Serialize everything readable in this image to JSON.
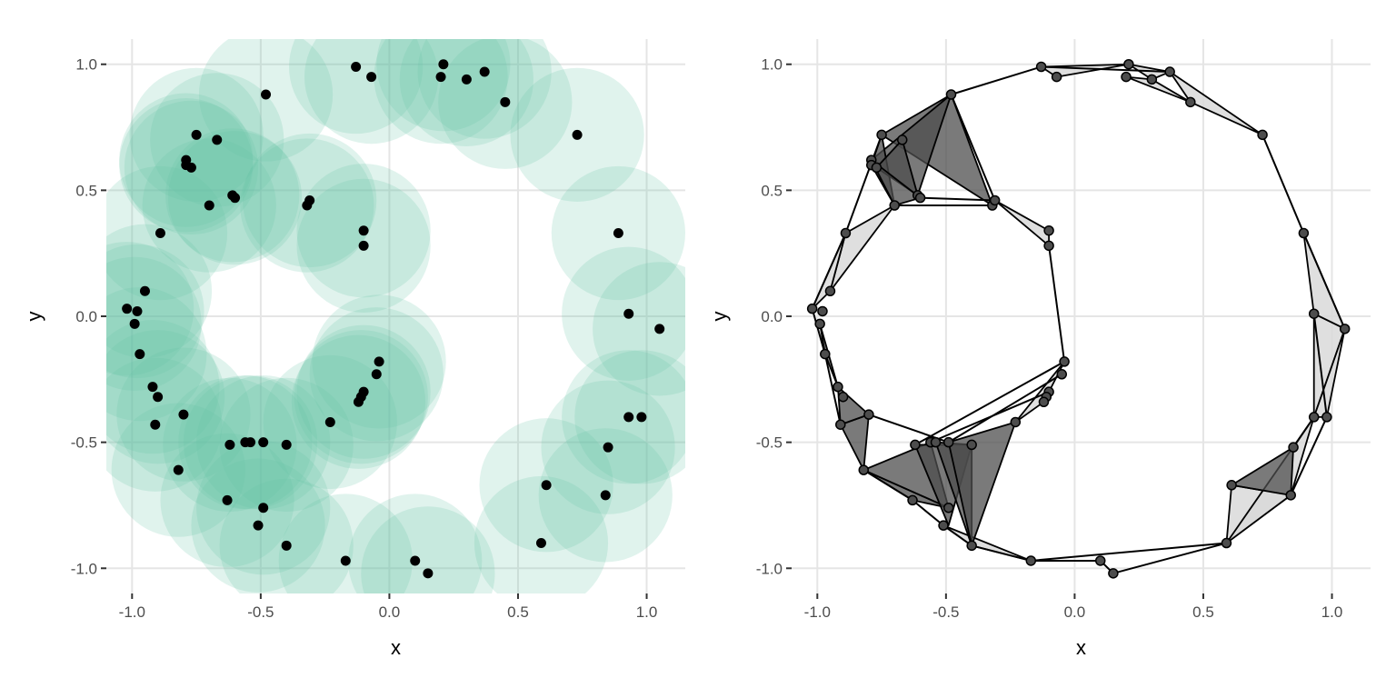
{
  "chart_data": [
    {
      "type": "scatter",
      "panel": "left",
      "xlabel": "x",
      "ylabel": "y",
      "xlim": [
        -1.1,
        1.15
      ],
      "ylim": [
        -1.1,
        1.1
      ],
      "xticks": [
        -1.0,
        -0.5,
        0.0,
        0.5,
        1.0
      ],
      "yticks": [
        -1.0,
        -0.5,
        0.0,
        0.5,
        1.0
      ],
      "xtick_labels": [
        "-1.0",
        "-0.5",
        "0.0",
        "0.5",
        "1.0"
      ],
      "ytick_labels": [
        "-1.0",
        "-0.5",
        "0.0",
        "0.5",
        "1.0"
      ],
      "grid": true,
      "disc_radius": 0.26,
      "disc_color": "#66c2a5",
      "disc_opacity": 0.2,
      "point_color": "#000000",
      "points": [
        [
          -0.13,
          0.99
        ],
        [
          -0.07,
          0.95
        ],
        [
          0.21,
          1.0
        ],
        [
          0.2,
          0.95
        ],
        [
          0.3,
          0.94
        ],
        [
          0.37,
          0.97
        ],
        [
          0.45,
          0.85
        ],
        [
          -0.48,
          0.88
        ],
        [
          0.73,
          0.72
        ],
        [
          -0.75,
          0.72
        ],
        [
          -0.67,
          0.7
        ],
        [
          -0.79,
          0.62
        ],
        [
          -0.79,
          0.6
        ],
        [
          -0.77,
          0.59
        ],
        [
          -0.61,
          0.48
        ],
        [
          -0.6,
          0.47
        ],
        [
          -0.7,
          0.44
        ],
        [
          -0.32,
          0.44
        ],
        [
          -0.31,
          0.46
        ],
        [
          -0.89,
          0.33
        ],
        [
          -0.1,
          0.34
        ],
        [
          -0.1,
          0.28
        ],
        [
          0.89,
          0.33
        ],
        [
          -0.95,
          0.1
        ],
        [
          -1.02,
          0.03
        ],
        [
          -0.98,
          0.02
        ],
        [
          -0.99,
          -0.03
        ],
        [
          0.93,
          0.01
        ],
        [
          1.05,
          -0.05
        ],
        [
          -0.97,
          -0.15
        ],
        [
          -0.04,
          -0.18
        ],
        [
          -0.05,
          -0.23
        ],
        [
          -0.92,
          -0.28
        ],
        [
          -0.9,
          -0.32
        ],
        [
          -0.1,
          -0.3
        ],
        [
          -0.11,
          -0.32
        ],
        [
          -0.12,
          -0.34
        ],
        [
          -0.8,
          -0.39
        ],
        [
          0.93,
          -0.4
        ],
        [
          0.98,
          -0.4
        ],
        [
          -0.91,
          -0.43
        ],
        [
          -0.23,
          -0.42
        ],
        [
          -0.56,
          -0.5
        ],
        [
          -0.54,
          -0.5
        ],
        [
          -0.62,
          -0.51
        ],
        [
          -0.49,
          -0.5
        ],
        [
          -0.4,
          -0.51
        ],
        [
          0.85,
          -0.52
        ],
        [
          -0.82,
          -0.61
        ],
        [
          0.61,
          -0.67
        ],
        [
          0.84,
          -0.71
        ],
        [
          -0.63,
          -0.73
        ],
        [
          -0.49,
          -0.76
        ],
        [
          -0.51,
          -0.83
        ],
        [
          -0.4,
          -0.91
        ],
        [
          0.59,
          -0.9
        ],
        [
          -0.17,
          -0.97
        ],
        [
          0.1,
          -0.97
        ],
        [
          0.15,
          -1.02
        ]
      ]
    },
    {
      "type": "network",
      "panel": "right",
      "xlabel": "x",
      "ylabel": "y",
      "xlim": [
        -1.1,
        1.15
      ],
      "ylim": [
        -1.1,
        1.1
      ],
      "xticks": [
        -1.0,
        -0.5,
        0.0,
        0.5,
        1.0
      ],
      "yticks": [
        -1.0,
        -0.5,
        0.0,
        0.5,
        1.0
      ],
      "xtick_labels": [
        "-1.0",
        "-0.5",
        "0.0",
        "0.5",
        "1.0"
      ],
      "ytick_labels": [
        "-1.0",
        "-0.5",
        "0.0",
        "0.5",
        "1.0"
      ],
      "grid": true,
      "node_color": "#4d4d4d",
      "edge_color": "#000000",
      "light_fill": "#d9d9d9",
      "dark_fill": "#4d4d4d",
      "light_triangles": [
        [
          [
            -0.13,
            0.99
          ],
          [
            0.21,
            1.0
          ],
          [
            -0.07,
            0.95
          ]
        ],
        [
          [
            0.21,
            1.0
          ],
          [
            0.37,
            0.97
          ],
          [
            0.3,
            0.94
          ]
        ],
        [
          [
            0.37,
            0.97
          ],
          [
            0.45,
            0.85
          ],
          [
            0.73,
            0.72
          ]
        ],
        [
          [
            0.2,
            0.95
          ],
          [
            0.3,
            0.94
          ],
          [
            0.45,
            0.85
          ]
        ],
        [
          [
            -0.89,
            0.33
          ],
          [
            -0.95,
            0.1
          ],
          [
            -0.7,
            0.44
          ]
        ],
        [
          [
            -0.95,
            0.1
          ],
          [
            -1.02,
            0.03
          ],
          [
            -0.89,
            0.33
          ]
        ],
        [
          [
            0.89,
            0.33
          ],
          [
            0.93,
            0.01
          ],
          [
            1.05,
            -0.05
          ]
        ],
        [
          [
            1.05,
            -0.05
          ],
          [
            0.93,
            0.01
          ],
          [
            0.93,
            -0.4
          ]
        ],
        [
          [
            0.93,
            -0.4
          ],
          [
            1.05,
            -0.05
          ],
          [
            0.98,
            -0.4
          ]
        ],
        [
          [
            -0.1,
            0.34
          ],
          [
            -0.1,
            0.28
          ],
          [
            -0.31,
            0.46
          ]
        ],
        [
          [
            0.59,
            -0.9
          ],
          [
            0.61,
            -0.67
          ],
          [
            0.84,
            -0.71
          ]
        ],
        [
          [
            0.84,
            -0.71
          ],
          [
            0.93,
            -0.4
          ],
          [
            0.59,
            -0.9
          ]
        ],
        [
          [
            -0.17,
            -0.97
          ],
          [
            -0.4,
            -0.91
          ],
          [
            -0.51,
            -0.83
          ]
        ],
        [
          [
            -0.23,
            -0.42
          ],
          [
            -0.04,
            -0.18
          ],
          [
            -0.12,
            -0.34
          ]
        ]
      ],
      "dark_triangles": [
        [
          [
            -0.48,
            0.88
          ],
          [
            -0.75,
            0.72
          ],
          [
            -0.32,
            0.44
          ]
        ],
        [
          [
            -0.48,
            0.88
          ],
          [
            -0.79,
            0.62
          ],
          [
            -0.61,
            0.48
          ]
        ],
        [
          [
            -0.75,
            0.72
          ],
          [
            -0.79,
            0.6
          ],
          [
            -0.7,
            0.44
          ]
        ],
        [
          [
            -0.67,
            0.7
          ],
          [
            -0.77,
            0.59
          ],
          [
            -0.61,
            0.48
          ]
        ],
        [
          [
            -0.79,
            0.62
          ],
          [
            -0.7,
            0.44
          ],
          [
            -0.6,
            0.47
          ]
        ],
        [
          [
            -0.91,
            -0.43
          ],
          [
            -0.82,
            -0.61
          ],
          [
            -0.8,
            -0.39
          ]
        ],
        [
          [
            -0.82,
            -0.61
          ],
          [
            -0.56,
            -0.5
          ],
          [
            -0.49,
            -0.76
          ]
        ],
        [
          [
            -0.82,
            -0.61
          ],
          [
            -0.63,
            -0.73
          ],
          [
            -0.49,
            -0.76
          ]
        ],
        [
          [
            -0.62,
            -0.51
          ],
          [
            -0.4,
            -0.51
          ],
          [
            -0.49,
            -0.83
          ]
        ],
        [
          [
            -0.54,
            -0.5
          ],
          [
            -0.4,
            -0.51
          ],
          [
            -0.4,
            -0.91
          ]
        ],
        [
          [
            -0.49,
            -0.5
          ],
          [
            -0.23,
            -0.42
          ],
          [
            -0.4,
            -0.91
          ]
        ],
        [
          [
            0.61,
            -0.67
          ],
          [
            0.85,
            -0.52
          ],
          [
            0.84,
            -0.71
          ]
        ],
        [
          [
            -0.92,
            -0.28
          ],
          [
            -0.8,
            -0.39
          ],
          [
            -0.91,
            -0.43
          ]
        ],
        [
          [
            -0.97,
            -0.15
          ],
          [
            -0.99,
            -0.03
          ],
          [
            -0.92,
            -0.28
          ]
        ]
      ],
      "edges": [
        [
          [
            -0.48,
            0.88
          ],
          [
            -0.13,
            0.99
          ]
        ],
        [
          [
            -0.13,
            0.99
          ],
          [
            0.37,
            0.97
          ]
        ],
        [
          [
            0.73,
            0.72
          ],
          [
            0.89,
            0.33
          ]
        ],
        [
          [
            0.89,
            0.33
          ],
          [
            1.05,
            -0.05
          ]
        ],
        [
          [
            -0.1,
            0.28
          ],
          [
            -0.04,
            -0.18
          ]
        ],
        [
          [
            -0.48,
            0.88
          ],
          [
            -0.31,
            0.46
          ]
        ],
        [
          [
            -0.75,
            0.72
          ],
          [
            -0.89,
            0.33
          ]
        ],
        [
          [
            -0.89,
            0.33
          ],
          [
            -1.02,
            0.03
          ]
        ],
        [
          [
            -1.02,
            0.03
          ],
          [
            -0.97,
            -0.15
          ]
        ],
        [
          [
            -0.97,
            -0.15
          ],
          [
            -0.91,
            -0.43
          ]
        ],
        [
          [
            -0.82,
            -0.61
          ],
          [
            -0.63,
            -0.73
          ]
        ],
        [
          [
            -0.63,
            -0.73
          ],
          [
            -0.51,
            -0.83
          ]
        ],
        [
          [
            -0.51,
            -0.83
          ],
          [
            -0.4,
            -0.91
          ]
        ],
        [
          [
            -0.4,
            -0.91
          ],
          [
            -0.17,
            -0.97
          ]
        ],
        [
          [
            -0.17,
            -0.97
          ],
          [
            0.1,
            -0.97
          ]
        ],
        [
          [
            0.1,
            -0.97
          ],
          [
            0.15,
            -1.02
          ]
        ],
        [
          [
            0.15,
            -1.02
          ],
          [
            0.59,
            -0.9
          ]
        ],
        [
          [
            -0.17,
            -0.97
          ],
          [
            0.59,
            -0.9
          ]
        ],
        [
          [
            0.93,
            -0.4
          ],
          [
            0.85,
            -0.52
          ]
        ],
        [
          [
            0.98,
            -0.4
          ],
          [
            0.84,
            -0.71
          ]
        ],
        [
          [
            0.93,
            0.01
          ],
          [
            0.98,
            -0.4
          ]
        ],
        [
          [
            -0.49,
            -0.5
          ],
          [
            -0.05,
            -0.23
          ]
        ],
        [
          [
            -0.56,
            -0.5
          ],
          [
            -0.1,
            -0.3
          ]
        ],
        [
          [
            -0.8,
            -0.39
          ],
          [
            -0.49,
            -0.5
          ]
        ],
        [
          [
            -0.62,
            -0.51
          ],
          [
            -0.04,
            -0.18
          ]
        ],
        [
          [
            -0.7,
            0.44
          ],
          [
            -0.32,
            0.44
          ]
        ],
        [
          [
            -0.6,
            0.47
          ],
          [
            -0.31,
            0.46
          ]
        ]
      ]
    }
  ]
}
